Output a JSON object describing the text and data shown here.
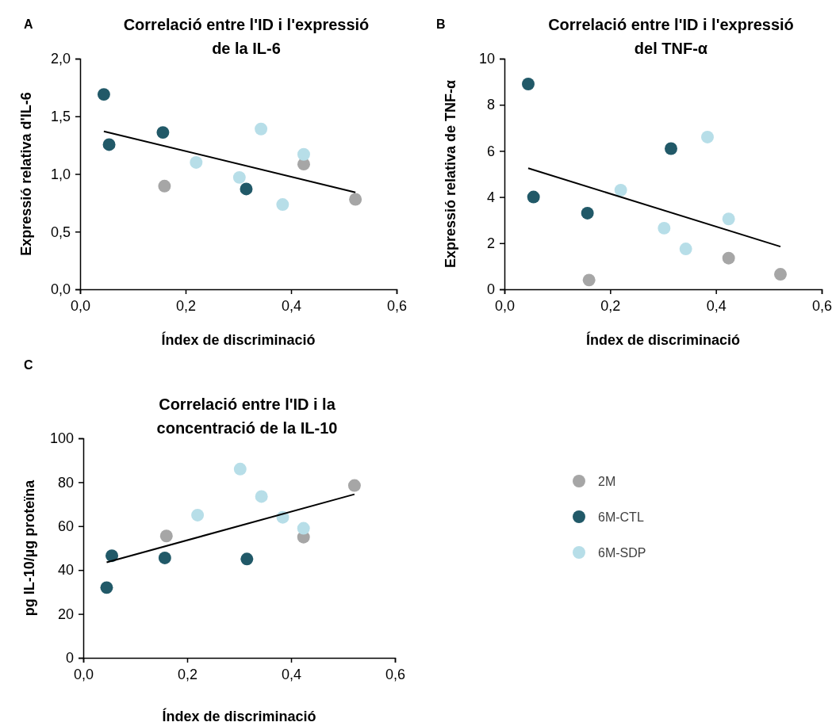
{
  "chart_data": [
    {
      "type": "scatter",
      "title": "Correlació entre l'ID i l'expressió de la IL-6",
      "xlabel": "Índex de discriminació",
      "ylabel": "Expressió relativa d'IL-6",
      "annotations": [
        "A"
      ],
      "xlim": [
        0,
        0.6
      ],
      "xticks": [
        {
          "value": 0,
          "label": "0,0"
        },
        {
          "value": 0.2,
          "label": "0,2"
        },
        {
          "value": 0.4,
          "label": "0,4"
        },
        {
          "value": 0.6,
          "label": "0,6"
        }
      ],
      "ylim": [
        0,
        2
      ],
      "yticks": [
        {
          "value": 0,
          "label": "0,0"
        },
        {
          "value": 0.5,
          "label": "0,5"
        },
        {
          "value": 1,
          "label": "1,0"
        },
        {
          "value": 1.5,
          "label": "1,5"
        },
        {
          "value": 2,
          "label": "2,0"
        }
      ],
      "grid": false,
      "legend": false,
      "marker": "circle",
      "series": [
        {
          "color": "#a6a6a6",
          "x": [
            0.16,
            0.424,
            0.522
          ],
          "values": [
            0.895,
            1.085,
            0.78
          ]
        },
        {
          "color": "#215968",
          "x": [
            0.045,
            0.055,
            0.157,
            0.315
          ],
          "values": [
            1.69,
            1.255,
            1.36,
            0.87
          ]
        },
        {
          "color": "#b7dee8",
          "x": [
            0.22,
            0.302,
            0.343,
            0.384,
            0.424
          ],
          "values": [
            1.1,
            0.97,
            1.39,
            0.735,
            1.17
          ]
        },
        {
          "type": "line",
          "color": "#000000",
          "marker": "none",
          "x": [
            0.045,
            0.522
          ],
          "values": [
            1.37,
            0.84
          ]
        }
      ]
    },
    {
      "type": "scatter",
      "title": "Correlació entre l'ID i l'expressió del TNF-α",
      "xlabel": "Índex de discriminació",
      "ylabel": "Expressió relativa de TNF-α",
      "annotations": [
        "B"
      ],
      "xlim": [
        0,
        0.6
      ],
      "xticks": [
        {
          "value": 0,
          "label": "0,0"
        },
        {
          "value": 0.2,
          "label": "0,2"
        },
        {
          "value": 0.4,
          "label": "0,4"
        },
        {
          "value": 0.6,
          "label": "0,6"
        }
      ],
      "ylim": [
        0,
        10
      ],
      "yticks": [
        0,
        2,
        4,
        6,
        8,
        10
      ],
      "grid": false,
      "legend": false,
      "marker": "circle",
      "series": [
        {
          "color": "#a6a6a6",
          "x": [
            0.16,
            0.424,
            0.522
          ],
          "values": [
            0.4,
            1.35,
            0.65
          ]
        },
        {
          "color": "#215968",
          "x": [
            0.045,
            0.055,
            0.157,
            0.315
          ],
          "values": [
            8.9,
            4.0,
            3.3,
            6.1
          ]
        },
        {
          "color": "#b7dee8",
          "x": [
            0.22,
            0.302,
            0.343,
            0.384,
            0.424
          ],
          "values": [
            4.3,
            2.65,
            1.75,
            6.6,
            3.05
          ]
        },
        {
          "type": "line",
          "color": "#000000",
          "marker": "none",
          "x": [
            0.045,
            0.522
          ],
          "values": [
            5.25,
            1.85
          ]
        }
      ]
    },
    {
      "type": "scatter",
      "title": "Correlació entre l'ID i la concentració de la IL-10",
      "xlabel": "Índex de discriminació",
      "ylabel": "pg IL-10/µg proteïna",
      "annotations": [
        "C"
      ],
      "xlim": [
        0,
        0.6
      ],
      "xticks": [
        {
          "value": 0,
          "label": "0,0"
        },
        {
          "value": 0.2,
          "label": "0,2"
        },
        {
          "value": 0.4,
          "label": "0,4"
        },
        {
          "value": 0.6,
          "label": "0,6"
        }
      ],
      "ylim": [
        0,
        100
      ],
      "yticks": [
        0,
        20,
        40,
        60,
        80,
        100
      ],
      "grid": false,
      "legend": "right",
      "marker": "circle",
      "series": [
        {
          "name": "2M",
          "color": "#a6a6a6",
          "x": [
            0.16,
            0.424,
            0.522
          ],
          "values": [
            55.5,
            55,
            78.5
          ]
        },
        {
          "name": "6M-CTL",
          "color": "#215968",
          "x": [
            0.045,
            0.055,
            0.157,
            0.315
          ],
          "values": [
            32,
            46.5,
            45.5,
            45
          ]
        },
        {
          "name": "6M-SDP",
          "color": "#b7dee8",
          "x": [
            0.22,
            0.302,
            0.343,
            0.384,
            0.424
          ],
          "values": [
            65,
            86,
            73.5,
            64,
            59
          ]
        },
        {
          "type": "line",
          "color": "#000000",
          "marker": "none",
          "x": [
            0.045,
            0.522
          ],
          "values": [
            43.5,
            74.5
          ]
        }
      ]
    }
  ]
}
